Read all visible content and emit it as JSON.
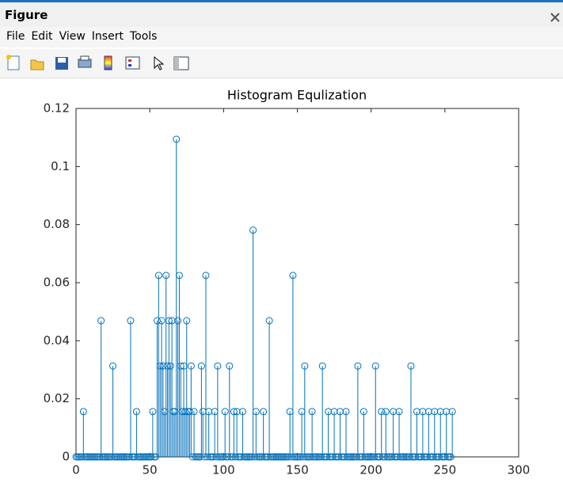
{
  "window": {
    "title": "Figure",
    "menu": [
      "File",
      "Edit",
      "View",
      "Insert",
      "Tools"
    ]
  },
  "chart_data": {
    "type": "stem",
    "title": "Histogram Equlization",
    "color": "#0072bd",
    "x": [
      0,
      1,
      2,
      3,
      4,
      5,
      6,
      7,
      8,
      9,
      10,
      11,
      12,
      13,
      14,
      15,
      16,
      17,
      18,
      19,
      20,
      21,
      22,
      23,
      24,
      25,
      26,
      27,
      28,
      29,
      30,
      31,
      32,
      33,
      34,
      35,
      36,
      37,
      38,
      39,
      40,
      41,
      42,
      43,
      44,
      45,
      46,
      47,
      48,
      49,
      50,
      51,
      52,
      53,
      54,
      55,
      56,
      57,
      58,
      59,
      60,
      61,
      62,
      63,
      64,
      65,
      66,
      67,
      68,
      69,
      70,
      71,
      72,
      73,
      74,
      75,
      76,
      77,
      78,
      79,
      80,
      81,
      82,
      83,
      84,
      85,
      86,
      87,
      88,
      89,
      90,
      91,
      92,
      93,
      94,
      95,
      96,
      97,
      98,
      99,
      100,
      101,
      102,
      103,
      104,
      105,
      106,
      107,
      108,
      109,
      110,
      111,
      112,
      113,
      114,
      115,
      116,
      117,
      118,
      119,
      120,
      121,
      122,
      123,
      124,
      125,
      126,
      127,
      128,
      129,
      130,
      131,
      132,
      133,
      134,
      135,
      136,
      137,
      138,
      139,
      140,
      141,
      142,
      143,
      144,
      145,
      146,
      147,
      148,
      149,
      150,
      151,
      152,
      153,
      154,
      155,
      156,
      157,
      158,
      159,
      160,
      161,
      162,
      163,
      164,
      165,
      166,
      167,
      168,
      169,
      170,
      171,
      172,
      173,
      174,
      175,
      176,
      177,
      178,
      179,
      180,
      181,
      182,
      183,
      184,
      185,
      186,
      187,
      188,
      189,
      190,
      191,
      192,
      193,
      194,
      195,
      196,
      197,
      198,
      199,
      200,
      201,
      202,
      203,
      204,
      205,
      206,
      207,
      208,
      209,
      210,
      211,
      212,
      213,
      214,
      215,
      216,
      217,
      218,
      219,
      220,
      221,
      222,
      223,
      224,
      225,
      226,
      227,
      228,
      229,
      230,
      231,
      232,
      233,
      234,
      235,
      236,
      237,
      238,
      239,
      240,
      241,
      242,
      243,
      244,
      245,
      246,
      247,
      248,
      249,
      250,
      251,
      252,
      253,
      254,
      255
    ],
    "values": [
      0,
      0,
      0,
      0,
      0,
      0.0156,
      0,
      0,
      0,
      0,
      0,
      0,
      0,
      0,
      0,
      0,
      0,
      0.0469,
      0,
      0,
      0,
      0,
      0,
      0,
      0,
      0.0313,
      0,
      0,
      0,
      0,
      0,
      0,
      0,
      0,
      0,
      0,
      0,
      0.0469,
      0,
      0,
      0,
      0.0156,
      0,
      0,
      0,
      0,
      0,
      0,
      0,
      0,
      0,
      0,
      0.0156,
      0,
      0,
      0.0469,
      0.0625,
      0.0313,
      0.0469,
      0.0313,
      0.0156,
      0.0625,
      0.0313,
      0.0469,
      0.0313,
      0.0469,
      0.0156,
      0.0156,
      0.1094,
      0.0469,
      0.0625,
      0.0313,
      0.0156,
      0.0313,
      0.0156,
      0.0469,
      0.0156,
      0.0156,
      0.0313,
      0,
      0.0156,
      0,
      0,
      0,
      0,
      0.0313,
      0.0156,
      0,
      0.0625,
      0,
      0.0156,
      0,
      0,
      0,
      0.0156,
      0,
      0.0313,
      0,
      0,
      0,
      0,
      0.0156,
      0,
      0,
      0.0313,
      0,
      0,
      0.0156,
      0,
      0.0156,
      0,
      0,
      0,
      0.0156,
      0,
      0,
      0,
      0,
      0,
      0,
      0.0781,
      0,
      0.0156,
      0,
      0,
      0,
      0,
      0.0156,
      0,
      0,
      0,
      0.0469,
      0,
      0,
      0,
      0,
      0,
      0,
      0,
      0,
      0,
      0,
      0,
      0,
      0,
      0.0156,
      0,
      0.0625,
      0,
      0,
      0,
      0,
      0,
      0.0156,
      0,
      0.0313,
      0,
      0,
      0,
      0,
      0.0156,
      0,
      0,
      0,
      0,
      0,
      0,
      0.0313,
      0,
      0,
      0,
      0.0156,
      0,
      0,
      0,
      0.0156,
      0,
      0,
      0,
      0.0156,
      0,
      0,
      0,
      0.0156,
      0,
      0,
      0,
      0,
      0,
      0,
      0,
      0.0313,
      0,
      0,
      0,
      0.0156,
      0,
      0,
      0,
      0,
      0,
      0,
      0,
      0.0313,
      0,
      0,
      0,
      0.0156,
      0,
      0,
      0.0156,
      0,
      0,
      0,
      0,
      0.0156,
      0,
      0,
      0,
      0.0156,
      0,
      0,
      0,
      0,
      0,
      0,
      0,
      0.0313,
      0,
      0,
      0,
      0.0156,
      0,
      0,
      0,
      0.0156,
      0,
      0,
      0,
      0.0156,
      0,
      0,
      0,
      0.0156,
      0,
      0,
      0,
      0.0156,
      0,
      0,
      0,
      0.0156,
      0,
      0,
      0,
      0.0156
    ],
    "xlim": [
      0,
      300
    ],
    "xticks": [
      0,
      50,
      100,
      150,
      200,
      250,
      300
    ],
    "ylim": [
      0,
      0.12
    ],
    "yticks": [
      0,
      0.02,
      0.04,
      0.06,
      0.08,
      0.1,
      0.12
    ]
  }
}
